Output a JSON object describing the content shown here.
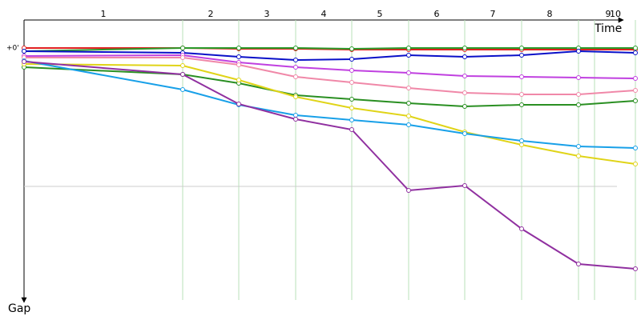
{
  "chart_data": {
    "type": "line",
    "x_label": "Time",
    "y_label": "Gap",
    "xlim": [
      0,
      770
    ],
    "ylim": [
      0,
      315
    ],
    "xticks": [
      {
        "value": 99,
        "label": "1"
      },
      {
        "value": 233,
        "label": "2"
      },
      {
        "value": 303,
        "label": "3"
      },
      {
        "value": 374,
        "label": "4"
      },
      {
        "value": 444,
        "label": "5"
      },
      {
        "value": 515,
        "label": "6"
      },
      {
        "value": 585,
        "label": "7"
      },
      {
        "value": 656,
        "label": "8"
      },
      {
        "value": 729,
        "label": "9"
      },
      {
        "value": 738,
        "label": "10"
      }
    ],
    "yticks": [
      {
        "value": 0,
        "label": "+0'"
      }
    ],
    "xgrid": [
      198,
      268,
      339,
      409,
      480,
      550,
      621,
      692,
      712,
      763
    ],
    "ygrid": [
      173
    ],
    "x": [
      0,
      198,
      268,
      339,
      409,
      480,
      550,
      621,
      692,
      763
    ],
    "series": [
      {
        "color": "#e02020",
        "values": [
          0,
          0,
          1,
          1,
          2,
          2,
          2,
          2,
          2,
          2
        ]
      },
      {
        "color": "#2a9a2a",
        "values": [
          4,
          0,
          0,
          0,
          1,
          0,
          0,
          0,
          0,
          0
        ]
      },
      {
        "color": "#0a10c8",
        "values": [
          4,
          6,
          11,
          15,
          14,
          9,
          11,
          9,
          4,
          6
        ]
      },
      {
        "color": "#c040e0",
        "values": [
          10,
          9,
          18,
          24,
          28,
          31,
          35,
          36,
          37,
          38
        ]
      },
      {
        "color": "#f088a8",
        "values": [
          12,
          12,
          21,
          36,
          43,
          50,
          56,
          58,
          58,
          53
        ]
      },
      {
        "color": "#2a8f22",
        "values": [
          24,
          33,
          44,
          59,
          64,
          69,
          73,
          71,
          71,
          66
        ]
      },
      {
        "color": "#e0d418",
        "values": [
          20,
          22,
          40,
          61,
          75,
          85,
          105,
          121,
          135,
          145
        ]
      },
      {
        "color": "#18a0e8",
        "values": [
          16,
          52,
          71,
          84,
          90,
          96,
          107,
          116,
          123,
          125
        ]
      },
      {
        "color": "#9030a0",
        "values": [
          17,
          33,
          70,
          89,
          102,
          178,
          172,
          226,
          270,
          276
        ]
      }
    ]
  }
}
